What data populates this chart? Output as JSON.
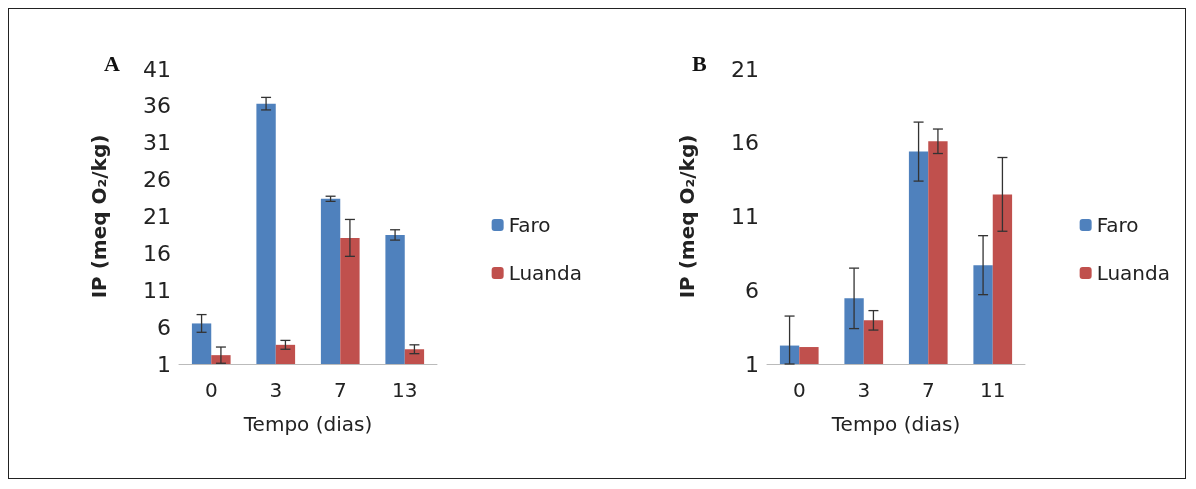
{
  "chart_data": [
    {
      "type": "bar",
      "title": "A",
      "xlabel": "Tempo (dias)",
      "ylabel": "IP (meq O₂/kg)",
      "categories": [
        "0",
        "3",
        "7",
        "13"
      ],
      "series": [
        {
          "name": "Faro",
          "color": "#4f81bd",
          "values": [
            6.5,
            36.3,
            23.4,
            18.5
          ],
          "errors": [
            1.2,
            0.85,
            0.35,
            0.7
          ]
        },
        {
          "name": "Luanda",
          "color": "#c0504d",
          "values": [
            2.2,
            3.6,
            18.1,
            3.0
          ],
          "errors": [
            1.1,
            0.6,
            2.5,
            0.6
          ]
        }
      ],
      "ylim": [
        1,
        41
      ],
      "yticks": [
        1,
        6,
        11,
        16,
        21,
        26,
        31,
        36,
        41
      ],
      "grid": false,
      "legend": "right"
    },
    {
      "type": "bar",
      "title": "B",
      "xlabel": "Tempo (dias)",
      "ylabel": "IP (meq O₂/kg)",
      "categories": [
        "0",
        "3",
        "7",
        "11"
      ],
      "series": [
        {
          "name": "Faro",
          "color": "#4f81bd",
          "values": [
            2.25,
            5.45,
            15.4,
            7.7
          ],
          "errors": [
            [
              1,
              4.25
            ],
            2.05,
            2.0,
            2.0
          ]
        },
        {
          "name": "Luanda",
          "color": "#c0504d",
          "values": [
            2.15,
            3.96,
            16.1,
            12.5
          ],
          "errors": [
            null,
            0.66,
            0.83,
            2.5
          ]
        }
      ],
      "ylim": [
        1,
        21
      ],
      "yticks": [
        1,
        6,
        11,
        16,
        21
      ],
      "grid": false,
      "legend": "right"
    }
  ]
}
